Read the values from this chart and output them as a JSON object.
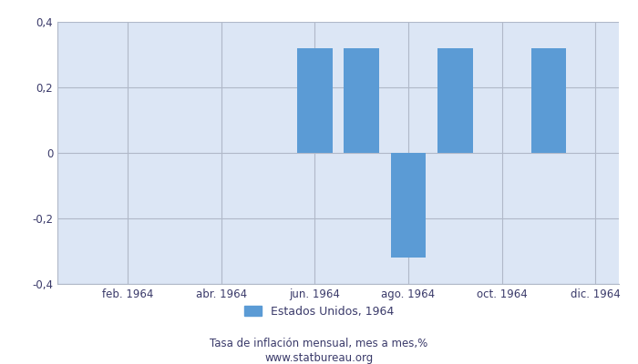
{
  "months": [
    1,
    2,
    3,
    4,
    5,
    6,
    7,
    8,
    9,
    10,
    11,
    12
  ],
  "values": [
    0,
    0,
    0,
    0,
    0,
    0.32,
    0.32,
    -0.32,
    0.32,
    0,
    0.32,
    0
  ],
  "bar_color": "#5b9bd5",
  "ylim": [
    -0.4,
    0.4
  ],
  "yticks": [
    -0.4,
    -0.2,
    0,
    0.2,
    0.4
  ],
  "ytick_labels": [
    "-0,4",
    "-0,2",
    "0",
    "0,2",
    "0,4"
  ],
  "xtick_positions": [
    2,
    4,
    6,
    8,
    10,
    12
  ],
  "xtick_labels": [
    "feb. 1964",
    "abr. 1964",
    "jun. 1964",
    "ago. 1964",
    "oct. 1964",
    "dic. 1964"
  ],
  "legend_label": "Estados Unidos, 1964",
  "subtitle": "Tasa de inflación mensual, mes a mes,%",
  "website": "www.statbureau.org",
  "fig_bg_color": "#ffffff",
  "plot_bg_color": "#dce6f5",
  "grid_color": "#b0b8c8",
  "tick_color": "#3a3a6a",
  "bar_width": 0.75
}
